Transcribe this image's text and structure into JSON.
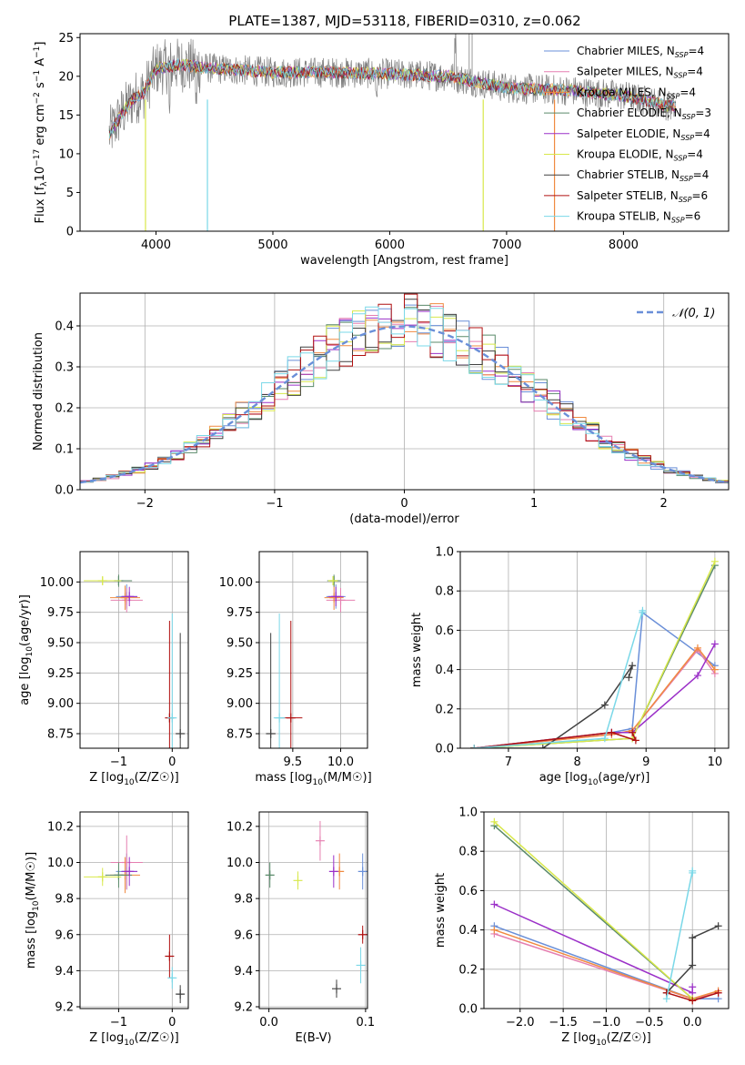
{
  "colors": {
    "chabrier_miles": "#6a8fd8",
    "salpeter_miles": "#e57fb0",
    "kroupa_miles": "#f08a40",
    "chabrier_elodie": "#5a8a6a",
    "salpeter_elodie": "#9b30c8",
    "kroupa_elodie": "#d8e84a",
    "chabrier_stelib": "#404040",
    "salpeter_stelib": "#b01010",
    "kroupa_stelib": "#7ad8e8",
    "grid": "#b0b0b0",
    "gray_spectrum": "#808080"
  },
  "chart_data": [
    {
      "id": "spectrum",
      "type": "line",
      "title": "PLATE=1387, MJD=53118, FIBERID=0310, z=0.062",
      "xlabel": "wavelength [Angstrom, rest frame]",
      "ylabel": "Flux [f_λ10^-17 erg cm^-2 s^-1 A^-1]",
      "xlim": [
        3350,
        8900
      ],
      "ylim": [
        0,
        25.5
      ],
      "xticks": [
        4000,
        5000,
        6000,
        7000,
        8000
      ],
      "yticks": [
        0,
        5,
        10,
        15,
        20,
        25
      ],
      "grid": false,
      "legend": "upper-right",
      "legend_entries": [
        "Chabrier MILES, N_SSP=4",
        "Salpeter MILES, N_SSP=4",
        "Kroupa MILES, N_SSP=4",
        "Chabrier ELODIE, N_SSP=3",
        "Salpeter ELODIE, N_SSP=4",
        "Kroupa ELODIE, N_SSP=4",
        "Chabrier STELIB, N_SSP=4",
        "Salpeter STELIB, N_SSP=6",
        "Kroupa STELIB, N_SSP=6"
      ],
      "continuum": [
        [
          3600,
          12.5
        ],
        [
          3700,
          15
        ],
        [
          3800,
          17
        ],
        [
          3900,
          18
        ],
        [
          4000,
          21
        ],
        [
          4200,
          21.5
        ],
        [
          4500,
          21
        ],
        [
          5000,
          20.5
        ],
        [
          5500,
          20.5
        ],
        [
          6000,
          20.3
        ],
        [
          6500,
          20
        ],
        [
          7000,
          18.5
        ],
        [
          7500,
          18.2
        ],
        [
          8000,
          17.5
        ],
        [
          8450,
          16
        ]
      ]
    },
    {
      "id": "residuals",
      "type": "line",
      "xlabel": "(data-model)/error",
      "ylabel": "Normed distribution",
      "xlim": [
        -2.5,
        2.5
      ],
      "ylim": [
        0,
        0.48
      ],
      "xticks": [
        -2,
        -1,
        0,
        1,
        2
      ],
      "yticks": [
        0.0,
        0.1,
        0.2,
        0.3,
        0.4
      ],
      "grid": true,
      "legend": "upper-right",
      "legend_entries": [
        "𝒩(0, 1)"
      ],
      "bin_width": 0.1
    },
    {
      "id": "age-vs-z",
      "type": "scatter",
      "xlabel": "Z [log10(Z/Z☉)]",
      "ylabel": "age  [log10(age/yr)]",
      "xlim": [
        -1.72,
        0.3
      ],
      "ylim": [
        8.63,
        10.25
      ],
      "xticks": [
        -1,
        0
      ],
      "yticks": [
        8.75,
        9.0,
        9.25,
        9.5,
        9.75,
        10.0
      ],
      "grid": true,
      "points": [
        {
          "series": "chabrier_miles",
          "x": -0.85,
          "y": 9.88,
          "xerr": 0.2,
          "yerr": 0.1
        },
        {
          "series": "salpeter_miles",
          "x": -0.85,
          "y": 9.85,
          "xerr": 0.3,
          "yerr": 0.1
        },
        {
          "series": "kroupa_miles",
          "x": -0.88,
          "y": 9.87,
          "xerr": 0.28,
          "yerr": 0.1
        },
        {
          "series": "chabrier_elodie",
          "x": -1.0,
          "y": 10.01,
          "xerr": 0.25,
          "yerr": 0.05
        },
        {
          "series": "salpeter_elodie",
          "x": -0.8,
          "y": 9.88,
          "xerr": 0.15,
          "yerr": 0.08
        },
        {
          "series": "kroupa_elodie",
          "x": -1.3,
          "y": 10.01,
          "xerr": 0.35,
          "yerr": 0.03
        },
        {
          "series": "chabrier_stelib",
          "x": 0.15,
          "y": 8.75,
          "xerr": 0.05,
          "yerr": 0.83
        },
        {
          "series": "salpeter_stelib",
          "x": -0.05,
          "y": 8.88,
          "xerr": 0.03,
          "yerr": 0.8
        },
        {
          "series": "kroupa_stelib",
          "x": 0.0,
          "y": 8.88,
          "xerr": 0.05,
          "yerr": 0.86
        }
      ]
    },
    {
      "id": "age-vs-mass",
      "type": "scatter",
      "xlabel": "mass [log10(M/M☉)]",
      "ylabel": "",
      "xlim": [
        9.15,
        10.28
      ],
      "ylim": [
        8.63,
        10.25
      ],
      "xticks": [
        9.5,
        10.0
      ],
      "yticks": [
        8.75,
        9.0,
        9.25,
        9.5,
        9.75,
        10.0
      ],
      "grid": true,
      "points": [
        {
          "series": "chabrier_miles",
          "x": 9.95,
          "y": 9.88,
          "xerr": 0.1,
          "yerr": 0.1
        },
        {
          "series": "salpeter_miles",
          "x": 10.0,
          "y": 9.85,
          "xerr": 0.15,
          "yerr": 0.1
        },
        {
          "series": "kroupa_miles",
          "x": 9.93,
          "y": 9.87,
          "xerr": 0.1,
          "yerr": 0.1
        },
        {
          "series": "chabrier_elodie",
          "x": 9.93,
          "y": 10.01,
          "xerr": 0.07,
          "yerr": 0.05
        },
        {
          "series": "salpeter_elodie",
          "x": 9.95,
          "y": 9.88,
          "xerr": 0.08,
          "yerr": 0.08
        },
        {
          "series": "kroupa_elodie",
          "x": 9.92,
          "y": 10.01,
          "xerr": 0.05,
          "yerr": 0.03
        },
        {
          "series": "chabrier_stelib",
          "x": 9.27,
          "y": 8.75,
          "xerr": 0.05,
          "yerr": 0.83
        },
        {
          "series": "salpeter_stelib",
          "x": 9.48,
          "y": 8.88,
          "xerr": 0.12,
          "yerr": 0.8
        },
        {
          "series": "kroupa_stelib",
          "x": 9.36,
          "y": 8.88,
          "xerr": 0.06,
          "yerr": 0.86
        }
      ]
    },
    {
      "id": "weight-vs-age",
      "type": "line",
      "xlabel": "age  [log10(age/yr)]",
      "ylabel": "mass weight",
      "xlim": [
        6.3,
        10.2
      ],
      "ylim": [
        0,
        1.0
      ],
      "xticks": [
        7,
        8,
        9,
        10
      ],
      "yticks": [
        0.0,
        0.2,
        0.4,
        0.6,
        0.8,
        1.0
      ],
      "grid": true,
      "series": [
        {
          "id": "chabrier_miles",
          "x": [
            6.5,
            8.5,
            8.8,
            8.95,
            10.0
          ],
          "y": [
            0.0,
            0.08,
            0.1,
            0.69,
            0.42
          ]
        },
        {
          "id": "salpeter_miles",
          "x": [
            6.5,
            8.5,
            8.8,
            9.75,
            10.0
          ],
          "y": [
            0.0,
            0.07,
            0.09,
            0.5,
            0.38
          ]
        },
        {
          "id": "kroupa_miles",
          "x": [
            6.5,
            8.5,
            8.8,
            9.75,
            10.0
          ],
          "y": [
            0.0,
            0.07,
            0.09,
            0.51,
            0.4
          ]
        },
        {
          "id": "chabrier_elodie",
          "x": [
            6.5,
            8.8,
            10.0
          ],
          "y": [
            0.0,
            0.05,
            0.93
          ]
        },
        {
          "id": "salpeter_elodie",
          "x": [
            6.5,
            8.5,
            8.8,
            9.75,
            10.0
          ],
          "y": [
            0.0,
            0.08,
            0.08,
            0.37,
            0.53
          ]
        },
        {
          "id": "kroupa_elodie",
          "x": [
            6.5,
            8.8,
            10.0
          ],
          "y": [
            0.0,
            0.05,
            0.95
          ]
        },
        {
          "id": "chabrier_stelib",
          "x": [
            6.5,
            7.5,
            8.4,
            8.8,
            8.75
          ],
          "y": [
            0.0,
            0.0,
            0.22,
            0.42,
            0.36
          ]
        },
        {
          "id": "salpeter_stelib",
          "x": [
            6.5,
            8.5,
            8.85,
            8.8
          ],
          "y": [
            0.0,
            0.08,
            0.04,
            0.08
          ]
        },
        {
          "id": "kroupa_stelib",
          "x": [
            6.5,
            8.4,
            8.95,
            8.95
          ],
          "y": [
            0.0,
            0.05,
            0.7,
            0.69
          ]
        }
      ]
    },
    {
      "id": "mass-vs-z",
      "type": "scatter",
      "xlabel": "Z [log10(Z/Z☉)]",
      "ylabel": "mass [log10(M/M☉)]",
      "xlim": [
        -1.72,
        0.3
      ],
      "ylim": [
        9.19,
        10.28
      ],
      "xticks": [
        -1,
        0
      ],
      "yticks": [
        9.2,
        9.4,
        9.6,
        9.8,
        10.0,
        10.2
      ],
      "grid": true,
      "points": [
        {
          "series": "chabrier_miles",
          "x": -0.85,
          "y": 9.95,
          "xerr": 0.2,
          "yerr": 0.1
        },
        {
          "series": "salpeter_miles",
          "x": -0.85,
          "y": 10.0,
          "xerr": 0.3,
          "yerr": 0.15
        },
        {
          "series": "kroupa_miles",
          "x": -0.88,
          "y": 9.93,
          "xerr": 0.28,
          "yerr": 0.1
        },
        {
          "series": "chabrier_elodie",
          "x": -1.0,
          "y": 9.93,
          "xerr": 0.25,
          "yerr": 0.07
        },
        {
          "series": "salpeter_elodie",
          "x": -0.8,
          "y": 9.95,
          "xerr": 0.15,
          "yerr": 0.08
        },
        {
          "series": "kroupa_elodie",
          "x": -1.3,
          "y": 9.92,
          "xerr": 0.35,
          "yerr": 0.05
        },
        {
          "series": "chabrier_stelib",
          "x": 0.15,
          "y": 9.27,
          "xerr": 0.05,
          "yerr": 0.05
        },
        {
          "series": "salpeter_stelib",
          "x": -0.05,
          "y": 9.48,
          "xerr": 0.03,
          "yerr": 0.12
        },
        {
          "series": "kroupa_stelib",
          "x": 0.0,
          "y": 9.36,
          "xerr": 0.05,
          "yerr": 0.06
        }
      ]
    },
    {
      "id": "mass-vs-ebv",
      "type": "scatter",
      "xlabel": "E(B-V)",
      "ylabel": "",
      "xlim": [
        -0.01,
        0.102
      ],
      "ylim": [
        9.19,
        10.28
      ],
      "xticks": [
        0.0,
        0.1
      ],
      "yticks": [
        9.2,
        9.4,
        9.6,
        9.8,
        10.0,
        10.2
      ],
      "grid": true,
      "points": [
        {
          "series": "chabrier_miles",
          "x": 0.097,
          "y": 9.95,
          "xerr": 0,
          "yerr": 0.1
        },
        {
          "series": "salpeter_miles",
          "x": 0.053,
          "y": 10.12,
          "xerr": 0,
          "yerr": 0.11
        },
        {
          "series": "kroupa_miles",
          "x": 0.073,
          "y": 9.95,
          "xerr": 0,
          "yerr": 0.1
        },
        {
          "series": "chabrier_elodie",
          "x": 0.001,
          "y": 9.93,
          "xerr": 0,
          "yerr": 0.07
        },
        {
          "series": "salpeter_elodie",
          "x": 0.067,
          "y": 9.95,
          "xerr": 0,
          "yerr": 0.09
        },
        {
          "series": "kroupa_elodie",
          "x": 0.03,
          "y": 9.9,
          "xerr": 0,
          "yerr": 0.05
        },
        {
          "series": "chabrier_stelib",
          "x": 0.07,
          "y": 9.3,
          "xerr": 0,
          "yerr": 0.05
        },
        {
          "series": "salpeter_stelib",
          "x": 0.097,
          "y": 9.6,
          "xerr": 0,
          "yerr": 0.05
        },
        {
          "series": "kroupa_stelib",
          "x": 0.095,
          "y": 9.43,
          "xerr": 0,
          "yerr": 0.1
        }
      ]
    },
    {
      "id": "weight-vs-z",
      "type": "line",
      "xlabel": "Z [log10(Z/Z☉)]",
      "ylabel": "mass weight",
      "xlim": [
        -2.42,
        0.42
      ],
      "ylim": [
        0,
        1.0
      ],
      "xticks": [
        -2.0,
        -1.5,
        -1.0,
        -0.5,
        0.0
      ],
      "yticks": [
        0.0,
        0.2,
        0.4,
        0.6,
        0.8,
        1.0
      ],
      "grid": true,
      "series": [
        {
          "id": "chabrier_miles",
          "x": [
            -2.3,
            0.0,
            0.3
          ],
          "y": [
            0.42,
            0.05,
            0.05
          ]
        },
        {
          "id": "salpeter_miles",
          "x": [
            -2.3,
            0.0,
            0.3
          ],
          "y": [
            0.38,
            0.05,
            0.08
          ]
        },
        {
          "id": "kroupa_miles",
          "x": [
            -2.3,
            0.0,
            0.3
          ],
          "y": [
            0.4,
            0.05,
            0.09
          ]
        },
        {
          "id": "chabrier_elodie",
          "x": [
            -2.3,
            0.0
          ],
          "y": [
            0.93,
            0.05
          ]
        },
        {
          "id": "salpeter_elodie",
          "x": [
            -2.3,
            0.0,
            0.0
          ],
          "y": [
            0.53,
            0.08,
            0.11
          ]
        },
        {
          "id": "kroupa_elodie",
          "x": [
            -2.3,
            0.0
          ],
          "y": [
            0.95,
            0.05
          ]
        },
        {
          "id": "chabrier_stelib",
          "x": [
            -0.3,
            0.0,
            0.0,
            0.3
          ],
          "y": [
            0.08,
            0.22,
            0.36,
            0.42
          ]
        },
        {
          "id": "salpeter_stelib",
          "x": [
            -0.3,
            0.0,
            0.3
          ],
          "y": [
            0.08,
            0.04,
            0.08
          ]
        },
        {
          "id": "kroupa_stelib",
          "x": [
            -0.3,
            0.0,
            0.0
          ],
          "y": [
            0.05,
            0.7,
            0.69
          ]
        }
      ]
    }
  ]
}
